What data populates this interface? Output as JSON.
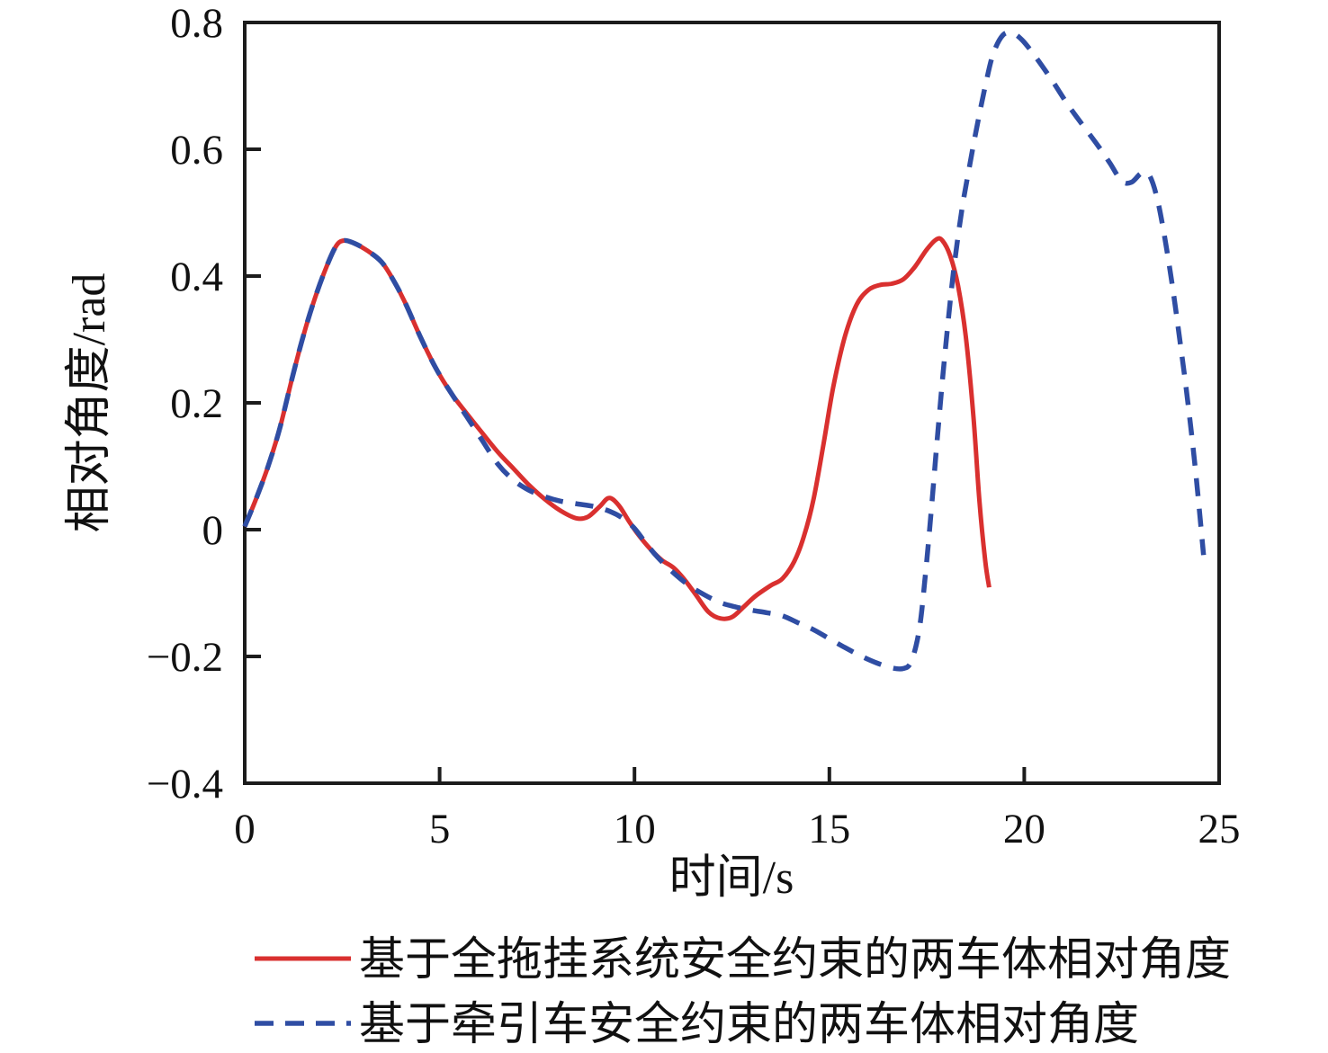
{
  "figure": {
    "background": "#ffffff",
    "axis_color": "#1c1c1c",
    "text_color": "#111111"
  },
  "chart_data": {
    "type": "line",
    "title": "",
    "xlabel": "时间/s",
    "ylabel": "相对角度/rad",
    "xlim": [
      0,
      25
    ],
    "ylim": [
      -0.4,
      0.8
    ],
    "xticks": [
      0,
      5,
      10,
      15,
      20,
      25
    ],
    "xtick_labels": [
      "0",
      "5",
      "10",
      "15",
      "20",
      "25"
    ],
    "yticks": [
      -0.4,
      -0.2,
      0,
      0.2,
      0.4,
      0.6,
      0.8
    ],
    "ytick_labels": [
      "−0.4",
      "−0.2",
      "0",
      "0.2",
      "0.4",
      "0.6",
      "0.8"
    ],
    "grid": false,
    "box": true,
    "legend_position": "below-left",
    "series": [
      {
        "name": "基于全拖挂系统安全约束的两车体相对角度",
        "color": "#d9302f",
        "line_style": "solid",
        "line_width": 5,
        "x": [
          0,
          0.3,
          0.6,
          0.9,
          1.2,
          1.5,
          1.8,
          2.1,
          2.35,
          2.55,
          2.8,
          3.1,
          3.5,
          3.8,
          4.1,
          4.5,
          4.9,
          5.3,
          5.7,
          6.1,
          6.5,
          6.9,
          7.3,
          7.7,
          8.1,
          8.5,
          8.8,
          9.1,
          9.35,
          9.6,
          9.85,
          10.1,
          10.4,
          10.7,
          11.0,
          11.3,
          11.6,
          11.9,
          12.2,
          12.5,
          12.8,
          13.1,
          13.5,
          13.8,
          14.1,
          14.35,
          14.6,
          14.85,
          15.1,
          15.4,
          15.7,
          16.0,
          16.3,
          16.6,
          16.9,
          17.2,
          17.5,
          17.75,
          17.9,
          18.1,
          18.3,
          18.5,
          18.7,
          18.85,
          19.0,
          19.1
        ],
        "y": [
          0.005,
          0.05,
          0.1,
          0.16,
          0.235,
          0.305,
          0.365,
          0.415,
          0.448,
          0.456,
          0.452,
          0.442,
          0.423,
          0.395,
          0.36,
          0.305,
          0.255,
          0.215,
          0.183,
          0.152,
          0.122,
          0.096,
          0.07,
          0.048,
          0.03,
          0.018,
          0.02,
          0.036,
          0.05,
          0.038,
          0.014,
          -0.008,
          -0.03,
          -0.048,
          -0.06,
          -0.08,
          -0.105,
          -0.13,
          -0.14,
          -0.138,
          -0.122,
          -0.105,
          -0.088,
          -0.077,
          -0.05,
          -0.01,
          0.05,
          0.135,
          0.225,
          0.305,
          0.355,
          0.378,
          0.386,
          0.388,
          0.395,
          0.415,
          0.442,
          0.458,
          0.456,
          0.432,
          0.385,
          0.305,
          0.175,
          0.045,
          -0.05,
          -0.091
        ]
      },
      {
        "name": "基于牵引车安全约束的两车体相对角度",
        "color": "#2f4da3",
        "line_style": "dashed",
        "line_width": 5.5,
        "dash": [
          20,
          14
        ],
        "x": [
          0,
          0.3,
          0.6,
          0.9,
          1.2,
          1.5,
          1.8,
          2.1,
          2.35,
          2.55,
          2.8,
          3.1,
          3.5,
          3.8,
          4.1,
          4.5,
          4.9,
          5.3,
          5.7,
          6.1,
          6.5,
          6.9,
          7.3,
          7.7,
          8.1,
          8.5,
          9.0,
          9.4,
          9.7,
          10.0,
          10.3,
          10.6,
          11.0,
          11.4,
          11.8,
          12.2,
          12.6,
          13.0,
          13.4,
          13.8,
          14.2,
          14.6,
          15.0,
          15.4,
          15.8,
          16.2,
          16.6,
          16.9,
          17.1,
          17.3,
          17.45,
          17.6,
          17.75,
          17.9,
          18.05,
          18.2,
          18.4,
          18.6,
          18.8,
          19.0,
          19.2,
          19.45,
          19.7,
          19.95,
          20.3,
          20.7,
          21.1,
          21.5,
          21.9,
          22.2,
          22.5,
          22.75,
          23.0,
          23.2,
          23.4,
          23.6,
          23.8,
          24.0,
          24.2,
          24.4,
          24.6
        ],
        "y": [
          0.005,
          0.05,
          0.1,
          0.16,
          0.235,
          0.305,
          0.365,
          0.415,
          0.448,
          0.456,
          0.452,
          0.442,
          0.423,
          0.395,
          0.36,
          0.305,
          0.255,
          0.215,
          0.178,
          0.14,
          0.103,
          0.078,
          0.062,
          0.052,
          0.045,
          0.041,
          0.036,
          0.028,
          0.018,
          0.002,
          -0.022,
          -0.044,
          -0.068,
          -0.088,
          -0.103,
          -0.115,
          -0.122,
          -0.127,
          -0.131,
          -0.136,
          -0.147,
          -0.158,
          -0.172,
          -0.186,
          -0.199,
          -0.21,
          -0.218,
          -0.219,
          -0.208,
          -0.16,
          -0.08,
          0.02,
          0.13,
          0.235,
          0.33,
          0.415,
          0.505,
          0.575,
          0.64,
          0.7,
          0.75,
          0.78,
          0.783,
          0.772,
          0.745,
          0.71,
          0.672,
          0.638,
          0.605,
          0.578,
          0.55,
          0.548,
          0.562,
          0.56,
          0.525,
          0.462,
          0.385,
          0.295,
          0.2,
          0.09,
          -0.04
        ]
      }
    ]
  }
}
